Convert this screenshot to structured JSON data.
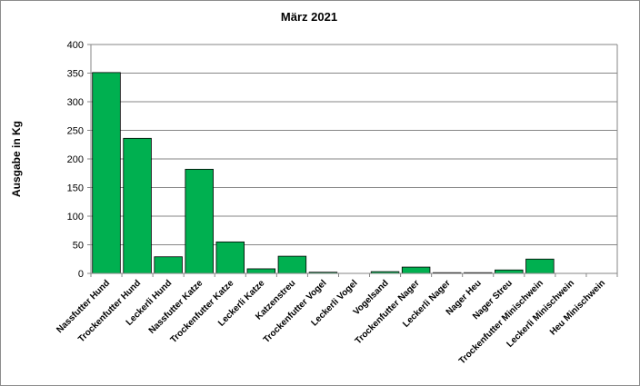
{
  "chart_data": {
    "type": "bar",
    "title": "März 2021",
    "xlabel": "",
    "ylabel": "Ausgabe in Kg",
    "ylim": [
      0,
      400
    ],
    "yticks": [
      0,
      50,
      100,
      150,
      200,
      250,
      300,
      350,
      400
    ],
    "grid": true,
    "bar_color": "#00b050",
    "categories": [
      "Nassfutter Hund",
      "Trockenfutter Hund",
      "Leckerli Hund",
      "Nassfutter Katze",
      "Trockenfutter Katze",
      "Leckerli Katze",
      "Katzenstreu",
      "Trockenfutter Vogel",
      "Leckerli Vogel",
      "Vogelsand",
      "Trockenfutter Nager",
      "Leckerli Nager",
      "Nager Heu",
      "Nager Streu",
      "Trockenfutter Minischwein",
      "Leckerli Minischwein",
      "Heu Minischwein"
    ],
    "values": [
      351,
      236,
      29,
      182,
      55,
      8,
      30,
      2,
      0,
      3,
      11,
      1,
      1,
      6,
      25,
      0,
      0
    ]
  }
}
